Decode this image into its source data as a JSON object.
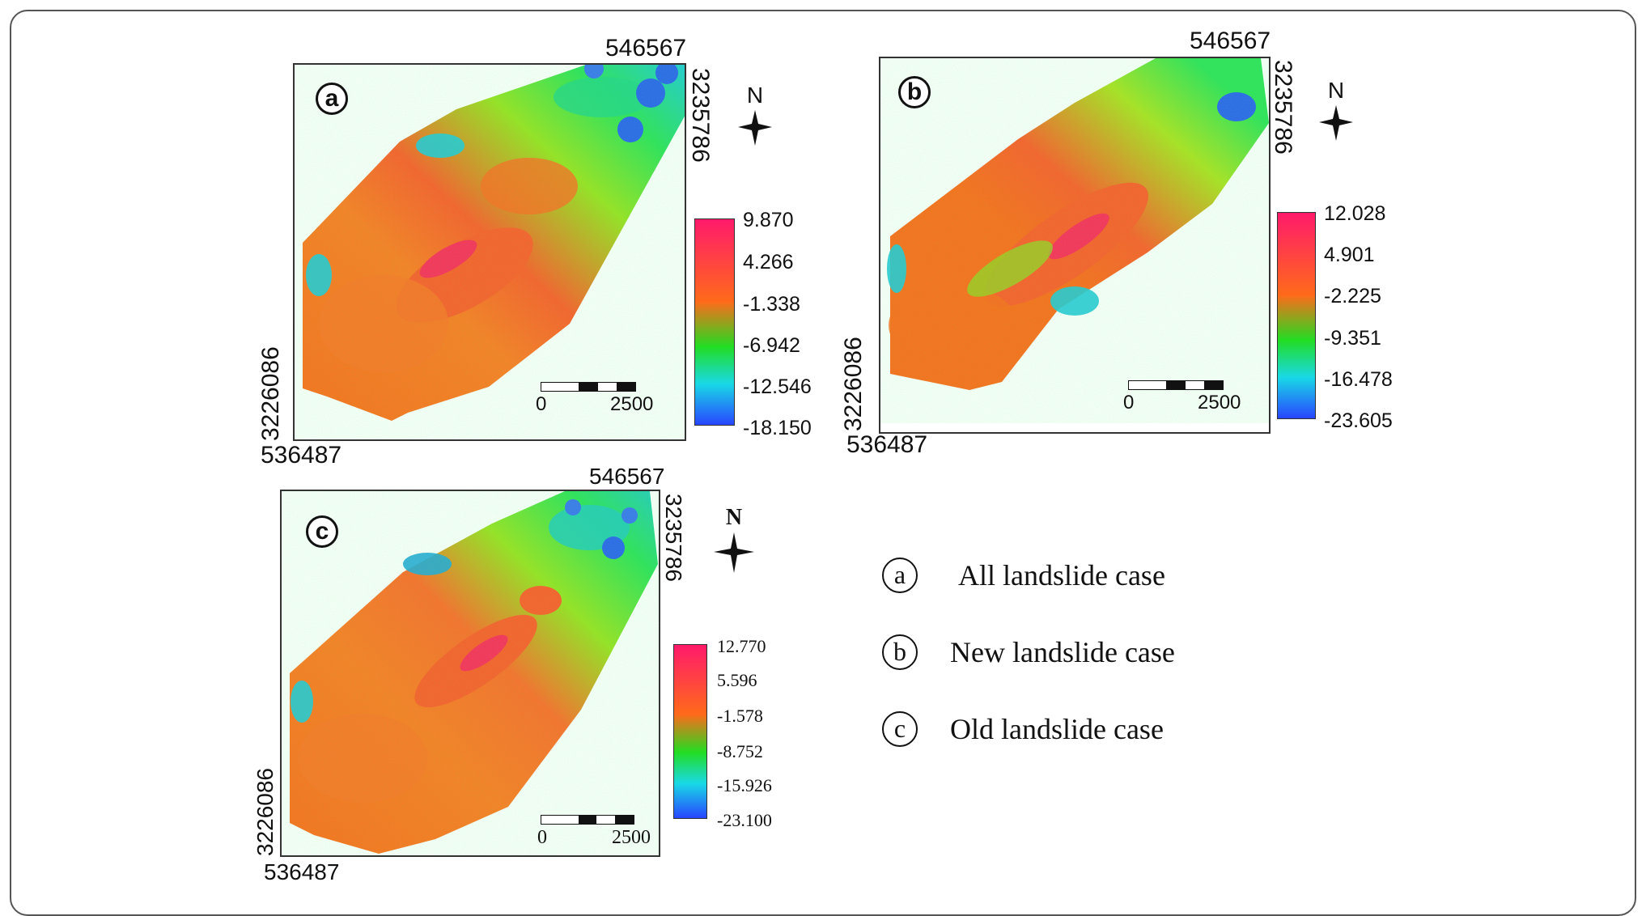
{
  "panels": [
    {
      "id": "a",
      "label": "a",
      "coords": {
        "top": "546567",
        "right": "3235786",
        "left": "3226086",
        "bottom": "536487"
      },
      "legend": [
        "9.870",
        "4.266",
        "-1.338",
        "-6.942",
        "-12.546",
        "-18.150"
      ],
      "scale": {
        "start": "0",
        "end": "2500"
      },
      "north": "N"
    },
    {
      "id": "b",
      "label": "b",
      "coords": {
        "top": "546567",
        "right": "3235786",
        "left": "3226086",
        "bottom": "536487"
      },
      "legend": [
        "12.028",
        "4.901",
        "-2.225",
        "-9.351",
        "-16.478",
        "-23.605"
      ],
      "scale": {
        "start": "0",
        "end": "2500"
      },
      "north": "N"
    },
    {
      "id": "c",
      "label": "c",
      "coords": {
        "top": "546567",
        "right": "3235786",
        "left": "3226086",
        "bottom": "536487"
      },
      "legend": [
        "12.770",
        "5.596",
        "-1.578",
        "-8.752",
        "-15.926",
        "-23.100"
      ],
      "scale": {
        "start": "0",
        "end": "2500"
      },
      "north": "N"
    }
  ],
  "key": [
    {
      "letter": "a",
      "text": "All landslide case"
    },
    {
      "letter": "b",
      "text": "New landslide case"
    },
    {
      "letter": "c",
      "text": "Old landslide case"
    }
  ],
  "colors": {
    "ramp_high": "#ff1a6b",
    "ramp_orange": "#ff6a1a",
    "ramp_green": "#22dd22",
    "ramp_cyan": "#19d9e6",
    "ramp_low": "#2846ff"
  }
}
